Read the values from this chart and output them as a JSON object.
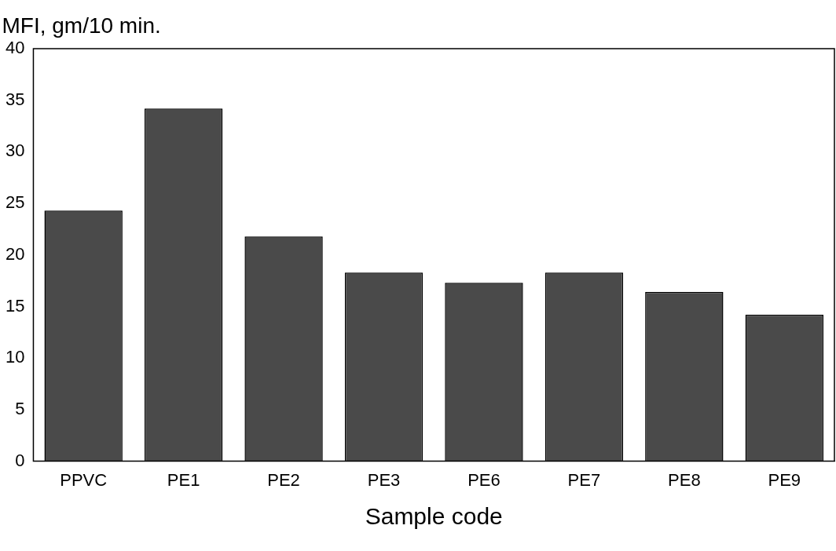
{
  "chart_data": {
    "type": "bar",
    "ylabel": "MFI, gm/10 min.",
    "xlabel": "Sample code",
    "categories": [
      "PPVC",
      "PE1",
      "PE2",
      "PE3",
      "PE6",
      "PE7",
      "PE8",
      "PE9"
    ],
    "values": [
      24.3,
      34.2,
      21.8,
      18.3,
      17.3,
      18.3,
      16.4,
      14.2
    ],
    "color": "#4a4a4a",
    "ylim": [
      0,
      40
    ],
    "yticks": [
      0,
      5,
      10,
      15,
      20,
      25,
      30,
      35,
      40
    ],
    "grid": false
  }
}
